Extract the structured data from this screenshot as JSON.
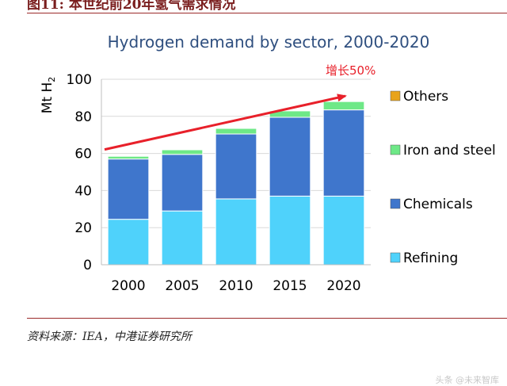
{
  "header": {
    "text": "图11: 本世纪前20年氢气需求情况"
  },
  "source": {
    "text": "资料来源：IEA，中港证券研究所"
  },
  "watermark": {
    "text": "头条 @未来智库"
  },
  "chart_data": {
    "type": "bar",
    "stacked": true,
    "title": "Hydrogen demand by sector, 2000-2020",
    "ylabel": "Mt H",
    "ylabel_sub": "2",
    "categories": [
      "2000",
      "2005",
      "2010",
      "2015",
      "2020"
    ],
    "ylim": [
      0,
      100
    ],
    "yticks": [
      "0",
      "20",
      "40",
      "60",
      "80",
      "100"
    ],
    "grid": true,
    "legend_position": "right",
    "series": [
      {
        "name": "Refining",
        "color": "#4fd2fb",
        "values": [
          24.5,
          29,
          35.5,
          37,
          37
        ]
      },
      {
        "name": "Chemicals",
        "color": "#3f76cc",
        "values": [
          32.5,
          30.5,
          35,
          42.5,
          46.5
        ]
      },
      {
        "name": "Iron and steel",
        "color": "#6ee887",
        "values": [
          1.5,
          2.5,
          3,
          3.5,
          4.5
        ]
      },
      {
        "name": "Others",
        "color": "#e8a31a",
        "values": [
          0.2,
          0.2,
          0.2,
          0.2,
          0.2
        ]
      }
    ],
    "annotation": {
      "text": "增长50%",
      "color": "#e8202a"
    }
  }
}
